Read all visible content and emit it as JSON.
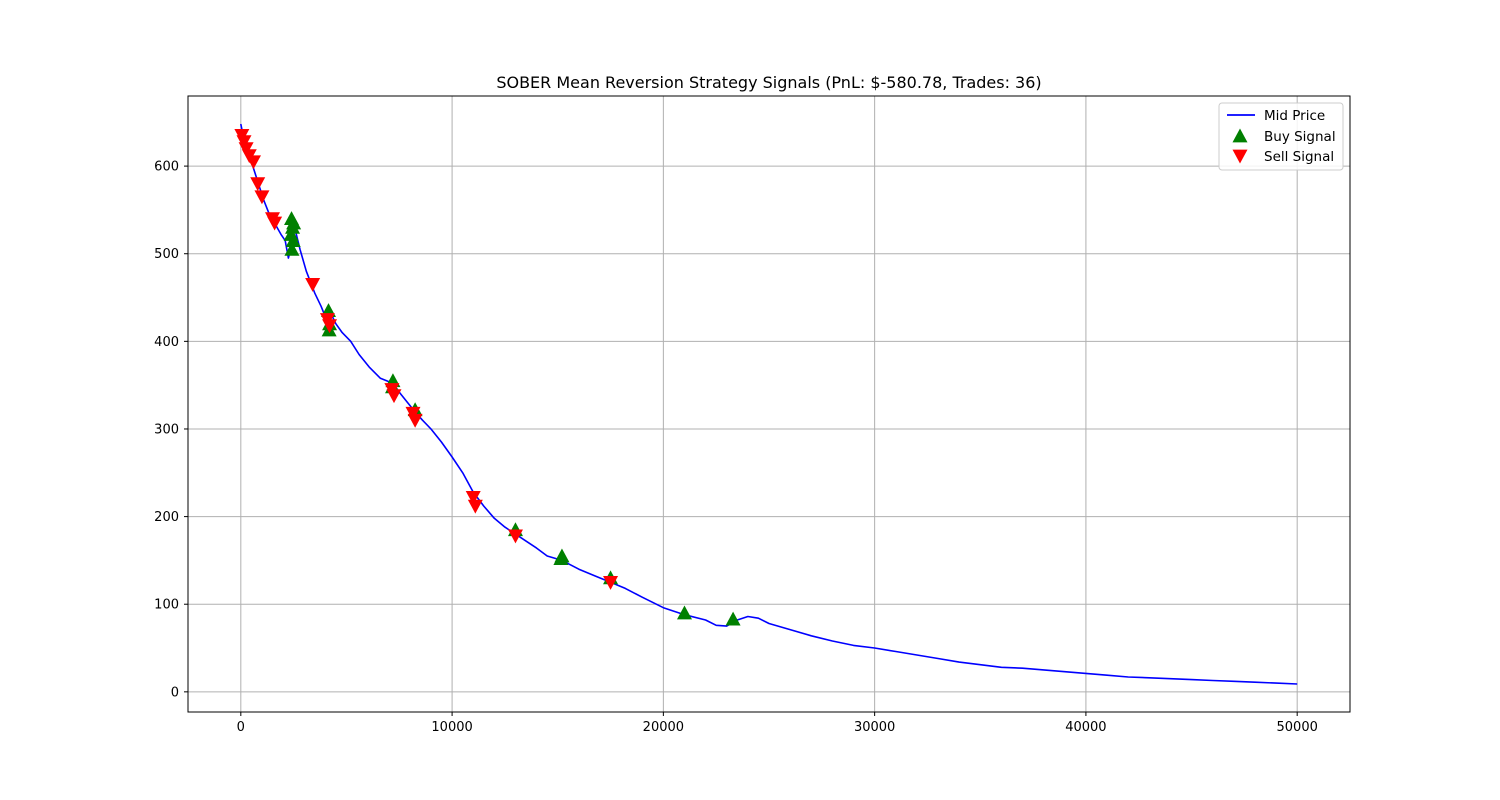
{
  "chart_data": {
    "type": "line",
    "title": "SOBER Mean Reversion Strategy Signals (PnL: $-580.78, Trades: 36)",
    "xlabel": "",
    "ylabel": "",
    "xlim": [
      -2500,
      52500
    ],
    "ylim": [
      -23,
      680
    ],
    "xticks": [
      0,
      10000,
      20000,
      30000,
      40000,
      50000
    ],
    "yticks": [
      0,
      100,
      200,
      300,
      400,
      500,
      600
    ],
    "grid": true,
    "legend_position": "upper right",
    "colors": {
      "line": "#0000ff",
      "buy": "#008000",
      "sell": "#ff0000",
      "grid": "#b0b0b0"
    },
    "series": [
      {
        "name": "Mid Price",
        "kind": "line",
        "x": [
          0,
          150,
          300,
          500,
          700,
          900,
          1100,
          1300,
          1600,
          1900,
          2100,
          2250,
          2350,
          2450,
          2600,
          2800,
          3100,
          3500,
          3800,
          4050,
          4200,
          4300,
          4500,
          4800,
          5200,
          5600,
          6100,
          6600,
          6900,
          7200,
          7500,
          7900,
          8300,
          8600,
          9000,
          9500,
          10000,
          10500,
          11000,
          11500,
          12000,
          12500,
          13000,
          13500,
          14000,
          14500,
          15200,
          16000,
          16800,
          17500,
          18200,
          19000,
          20000,
          21000,
          22000,
          22500,
          23000,
          23500,
          24000,
          24500,
          25000,
          26000,
          27000,
          28000,
          29000,
          30000,
          31000,
          32000,
          33000,
          34000,
          35000,
          36000,
          37000,
          38000,
          39000,
          40000,
          41000,
          42000,
          43000,
          44000,
          45000,
          46000,
          47000,
          48000,
          49000,
          50000
        ],
        "values": [
          648,
          630,
          615,
          605,
          590,
          575,
          560,
          548,
          535,
          522,
          515,
          495,
          505,
          540,
          525,
          505,
          480,
          455,
          440,
          425,
          435,
          430,
          420,
          410,
          400,
          385,
          370,
          358,
          355,
          352,
          342,
          330,
          318,
          310,
          300,
          285,
          268,
          250,
          228,
          212,
          198,
          188,
          180,
          172,
          164,
          155,
          150,
          140,
          132,
          125,
          118,
          108,
          96,
          88,
          82,
          76,
          75,
          82,
          86,
          84,
          78,
          71,
          64,
          58,
          53,
          50,
          46,
          42,
          38,
          34,
          31,
          28,
          27,
          25,
          23,
          21,
          19,
          17,
          16,
          15,
          14,
          13,
          12,
          11,
          10,
          9
        ]
      },
      {
        "name": "Buy Signal",
        "kind": "scatter",
        "marker": "triangle-up",
        "x": [
          2400,
          2450,
          2480,
          2420,
          2380,
          2500,
          4150,
          4200,
          4180,
          7200,
          7180,
          8250,
          13000,
          15200,
          15150,
          17500,
          21000,
          23300
        ],
        "values": [
          540,
          530,
          515,
          505,
          522,
          535,
          435,
          420,
          413,
          355,
          348,
          322,
          185,
          155,
          152,
          130,
          90,
          83
        ]
      },
      {
        "name": "Sell Signal",
        "kind": "scatter",
        "marker": "triangle-down",
        "x": [
          50,
          150,
          250,
          400,
          600,
          800,
          1000,
          1500,
          1600,
          3400,
          4100,
          4200,
          7150,
          7250,
          8150,
          8250,
          11000,
          11100,
          13000,
          17500
        ],
        "values": [
          635,
          628,
          620,
          612,
          605,
          580,
          565,
          540,
          535,
          465,
          425,
          418,
          345,
          338,
          318,
          310,
          222,
          212,
          178,
          125
        ]
      }
    ]
  }
}
